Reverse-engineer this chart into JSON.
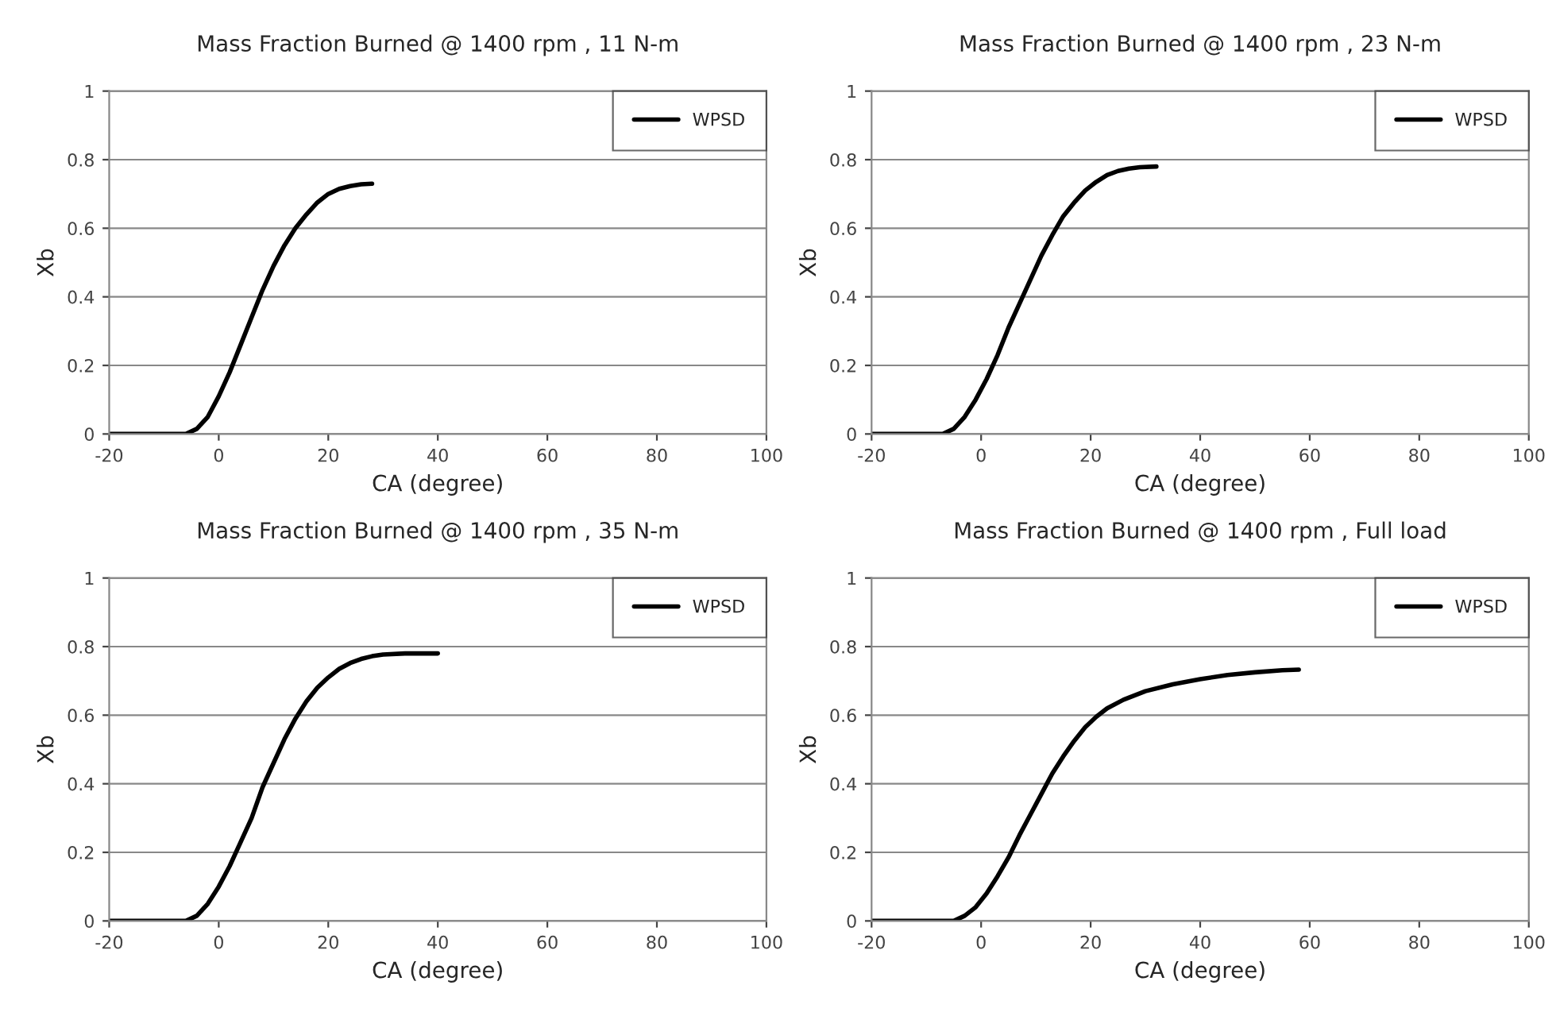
{
  "chart_data": [
    {
      "type": "line",
      "title": "Mass Fraction Burned @ 1400 rpm , 11 N-m",
      "xlabel": "CA (degree)",
      "ylabel": "Xb",
      "xlim": [
        -20,
        100
      ],
      "xticks": [
        -20,
        0,
        20,
        40,
        60,
        80,
        100
      ],
      "ylim": [
        0,
        1
      ],
      "yticks": [
        0,
        0.2,
        0.4,
        0.6,
        0.8,
        1
      ],
      "grid": "y",
      "legend": "top right",
      "marker": "none",
      "line_style": "solid",
      "series": [
        {
          "name": "WPSD",
          "color": "#000000",
          "x": [
            -20,
            -6,
            -4,
            -2,
            0,
            2,
            4,
            6,
            8,
            10,
            12,
            14,
            16,
            18,
            20,
            22,
            24,
            26,
            28
          ],
          "values": [
            0,
            0,
            0.015,
            0.05,
            0.11,
            0.18,
            0.26,
            0.34,
            0.42,
            0.49,
            0.55,
            0.6,
            0.64,
            0.675,
            0.7,
            0.715,
            0.723,
            0.728,
            0.73
          ]
        }
      ]
    },
    {
      "type": "line",
      "title": "Mass Fraction Burned @ 1400 rpm , 23 N-m",
      "xlabel": "CA (degree)",
      "ylabel": "Xb",
      "xlim": [
        -20,
        100
      ],
      "xticks": [
        -20,
        0,
        20,
        40,
        60,
        80,
        100
      ],
      "ylim": [
        0,
        1
      ],
      "yticks": [
        0,
        0.2,
        0.4,
        0.6,
        0.8,
        1
      ],
      "grid": "y",
      "legend": "top right",
      "marker": "none",
      "line_style": "solid",
      "series": [
        {
          "name": "WPSD",
          "color": "#000000",
          "x": [
            -20,
            -7,
            -5,
            -3,
            -1,
            1,
            3,
            5,
            7,
            9,
            11,
            13,
            15,
            17,
            19,
            21,
            23,
            25,
            27,
            29,
            32
          ],
          "values": [
            0,
            0,
            0.015,
            0.05,
            0.1,
            0.16,
            0.23,
            0.31,
            0.38,
            0.45,
            0.52,
            0.58,
            0.635,
            0.675,
            0.71,
            0.735,
            0.755,
            0.767,
            0.774,
            0.778,
            0.78
          ]
        }
      ]
    },
    {
      "type": "line",
      "title": "Mass Fraction Burned @ 1400 rpm , 35 N-m",
      "xlabel": "CA (degree)",
      "ylabel": "Xb",
      "xlim": [
        -20,
        100
      ],
      "xticks": [
        -20,
        0,
        20,
        40,
        60,
        80,
        100
      ],
      "ylim": [
        0,
        1
      ],
      "yticks": [
        0,
        0.2,
        0.4,
        0.6,
        0.8,
        1
      ],
      "grid": "y",
      "legend": "top right",
      "marker": "none",
      "line_style": "solid",
      "series": [
        {
          "name": "WPSD",
          "color": "#000000",
          "x": [
            -20,
            -6,
            -4,
            -2,
            0,
            2,
            4,
            6,
            8,
            10,
            12,
            14,
            16,
            18,
            20,
            22,
            24,
            26,
            28,
            30,
            34,
            40
          ],
          "values": [
            0,
            0,
            0.015,
            0.05,
            0.1,
            0.16,
            0.23,
            0.3,
            0.39,
            0.46,
            0.53,
            0.59,
            0.64,
            0.68,
            0.71,
            0.735,
            0.752,
            0.764,
            0.772,
            0.777,
            0.78,
            0.78
          ]
        }
      ]
    },
    {
      "type": "line",
      "title": "Mass Fraction Burned @ 1400 rpm , Full load",
      "xlabel": "CA (degree)",
      "ylabel": "Xb",
      "xlim": [
        -20,
        100
      ],
      "xticks": [
        -20,
        0,
        20,
        40,
        60,
        80,
        100
      ],
      "ylim": [
        0,
        1
      ],
      "yticks": [
        0,
        0.2,
        0.4,
        0.6,
        0.8,
        1
      ],
      "grid": "y",
      "legend": "top right",
      "marker": "none",
      "line_style": "solid",
      "series": [
        {
          "name": "WPSD",
          "color": "#000000",
          "x": [
            -20,
            -5,
            -3,
            -1,
            1,
            3,
            5,
            7,
            9,
            11,
            13,
            15,
            17,
            19,
            21,
            23,
            26,
            30,
            35,
            40,
            45,
            50,
            55,
            58
          ],
          "values": [
            0,
            0,
            0.015,
            0.04,
            0.08,
            0.13,
            0.185,
            0.25,
            0.31,
            0.37,
            0.43,
            0.48,
            0.525,
            0.565,
            0.595,
            0.62,
            0.645,
            0.67,
            0.69,
            0.705,
            0.717,
            0.725,
            0.731,
            0.733
          ]
        }
      ]
    }
  ]
}
